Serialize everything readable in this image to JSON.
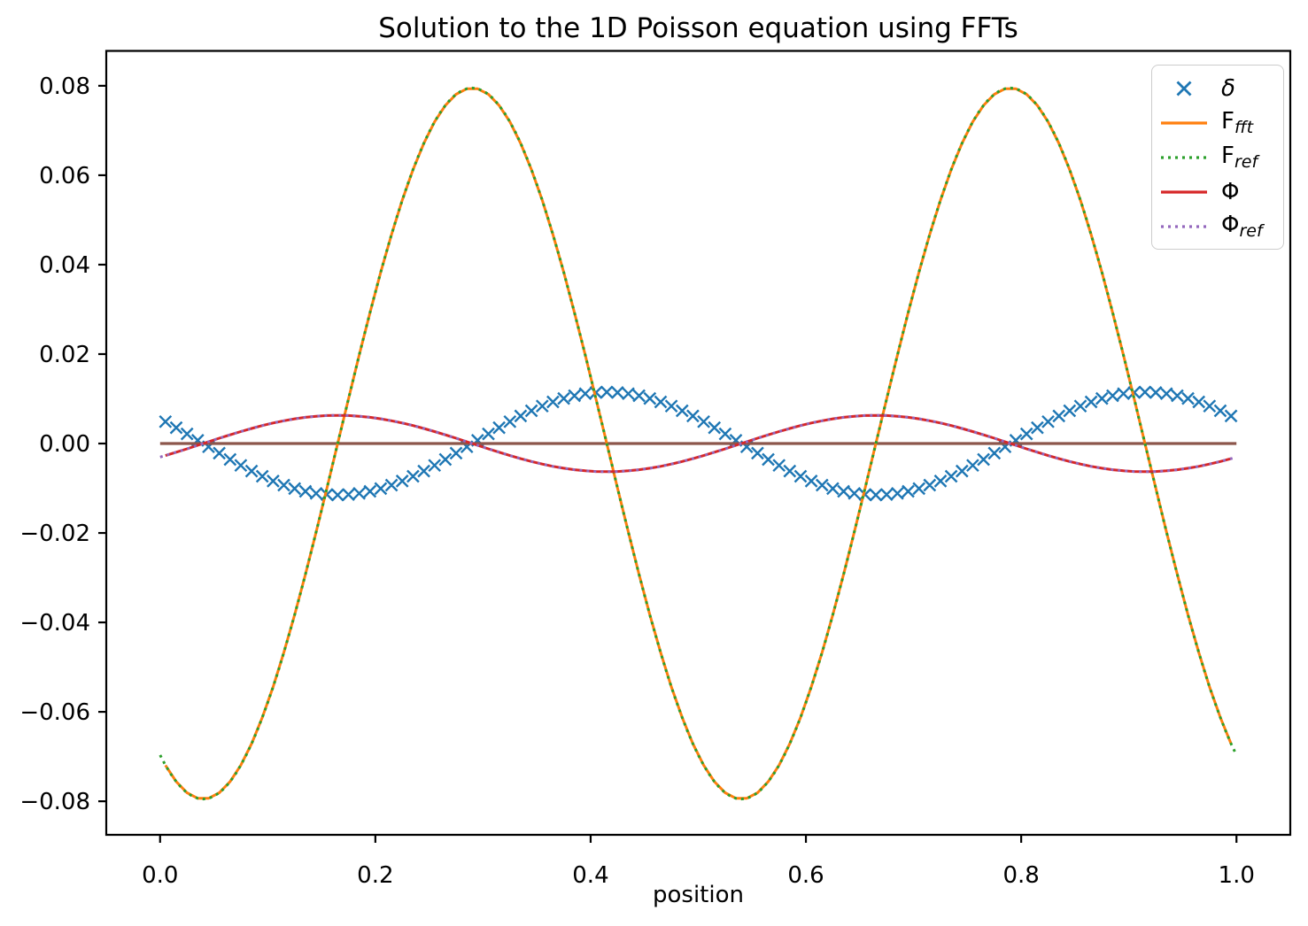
{
  "chart_data": {
    "type": "line",
    "title": "Solution to the 1D Poisson equation using FFTs",
    "xlabel": "position",
    "ylabel": "",
    "xlim": [
      -0.05,
      1.05
    ],
    "ylim": [
      -0.0875,
      0.0878
    ],
    "grid": false,
    "background_color": "#ffffff",
    "xticks": [
      {
        "value": 0.0,
        "label": "0.0"
      },
      {
        "value": 0.2,
        "label": "0.2"
      },
      {
        "value": 0.4,
        "label": "0.4"
      },
      {
        "value": 0.6,
        "label": "0.6"
      },
      {
        "value": 0.8,
        "label": "0.8"
      },
      {
        "value": 1.0,
        "label": "1.0"
      }
    ],
    "yticks": [
      {
        "value": 0.08,
        "label": "0.08"
      },
      {
        "value": 0.06,
        "label": "0.06"
      },
      {
        "value": 0.04,
        "label": "0.04"
      },
      {
        "value": 0.02,
        "label": "0.02"
      },
      {
        "value": 0.0,
        "label": "0.00"
      },
      {
        "value": -0.02,
        "label": "−0.02"
      },
      {
        "value": -0.04,
        "label": "−0.04"
      },
      {
        "value": -0.06,
        "label": "−0.06"
      },
      {
        "value": -0.08,
        "label": "−0.08"
      }
    ],
    "series": [
      {
        "key": "delta",
        "label": "δ",
        "plot": "markers",
        "marker": "x",
        "marker_size": 13,
        "marker_stroke": 2.4,
        "color": "#1f77b4",
        "formula": {
          "fn": "sin",
          "amplitude": -0.0115,
          "periods": 2,
          "phase_x0": 0.04
        },
        "x_start": 0.005,
        "x_end": 0.995,
        "n_points": 100,
        "in_legend": true
      },
      {
        "key": "zero_line",
        "label": "",
        "plot": "line",
        "line_style": "solid",
        "line_width": 3.2,
        "color": "#8c564b",
        "formula": {
          "fn": "const",
          "value": 0.0
        },
        "x_start": 0.0,
        "x_end": 1.0,
        "n_points": 2,
        "in_legend": false
      },
      {
        "key": "F_fft",
        "label": "F_fft",
        "plot": "line",
        "line_style": "solid",
        "line_width": 3,
        "color": "#ff7f0e",
        "formula": {
          "fn": "cos",
          "amplitude": -0.0795,
          "periods": 2,
          "phase_x0": 0.04
        },
        "x_start": 0.005,
        "x_end": 0.995,
        "n_points": 100,
        "in_legend": true
      },
      {
        "key": "F_ref",
        "label": "F_ref",
        "plot": "line",
        "line_style": "dotted",
        "line_width": 3,
        "color": "#2ca02c",
        "formula": {
          "fn": "cos",
          "amplitude": -0.0795,
          "periods": 2,
          "phase_x0": 0.04
        },
        "x_start": 0.0,
        "x_end": 1.0,
        "n_points": 201,
        "in_legend": true
      },
      {
        "key": "Phi",
        "label": "Φ",
        "plot": "line",
        "line_style": "solid",
        "line_width": 3,
        "color": "#d62728",
        "formula": {
          "fn": "sin",
          "amplitude": 0.0063,
          "periods": 2,
          "phase_x0": 0.04
        },
        "x_start": 0.005,
        "x_end": 0.995,
        "n_points": 100,
        "in_legend": true
      },
      {
        "key": "Phi_ref",
        "label": "Φ_ref",
        "plot": "line",
        "line_style": "dotted",
        "line_width": 3,
        "color": "#9467bd",
        "formula": {
          "fn": "sin",
          "amplitude": 0.0063,
          "periods": 2,
          "phase_x0": 0.04
        },
        "x_start": 0.0,
        "x_end": 1.0,
        "n_points": 201,
        "in_legend": true
      }
    ],
    "legend": {
      "position": "upper right",
      "items": [
        {
          "series": "delta",
          "label_main": "δ",
          "label_sub": "",
          "main_italic": true,
          "swatch": "x-marker",
          "color": "#1f77b4"
        },
        {
          "series": "F_fft",
          "label_main": "F",
          "label_sub": "fft",
          "main_italic": false,
          "swatch": "line-solid",
          "color": "#ff7f0e"
        },
        {
          "series": "F_ref",
          "label_main": "F",
          "label_sub": "ref",
          "main_italic": false,
          "swatch": "line-dotted",
          "color": "#2ca02c"
        },
        {
          "series": "Phi",
          "label_main": "Φ",
          "label_sub": "",
          "main_italic": false,
          "swatch": "line-solid",
          "color": "#d62728"
        },
        {
          "series": "Phi_ref",
          "label_main": "Φ",
          "label_sub": "ref",
          "main_italic": false,
          "swatch": "line-dotted",
          "color": "#9467bd"
        }
      ]
    },
    "axis_color": "#000000",
    "tick_label_color": "#000000"
  }
}
